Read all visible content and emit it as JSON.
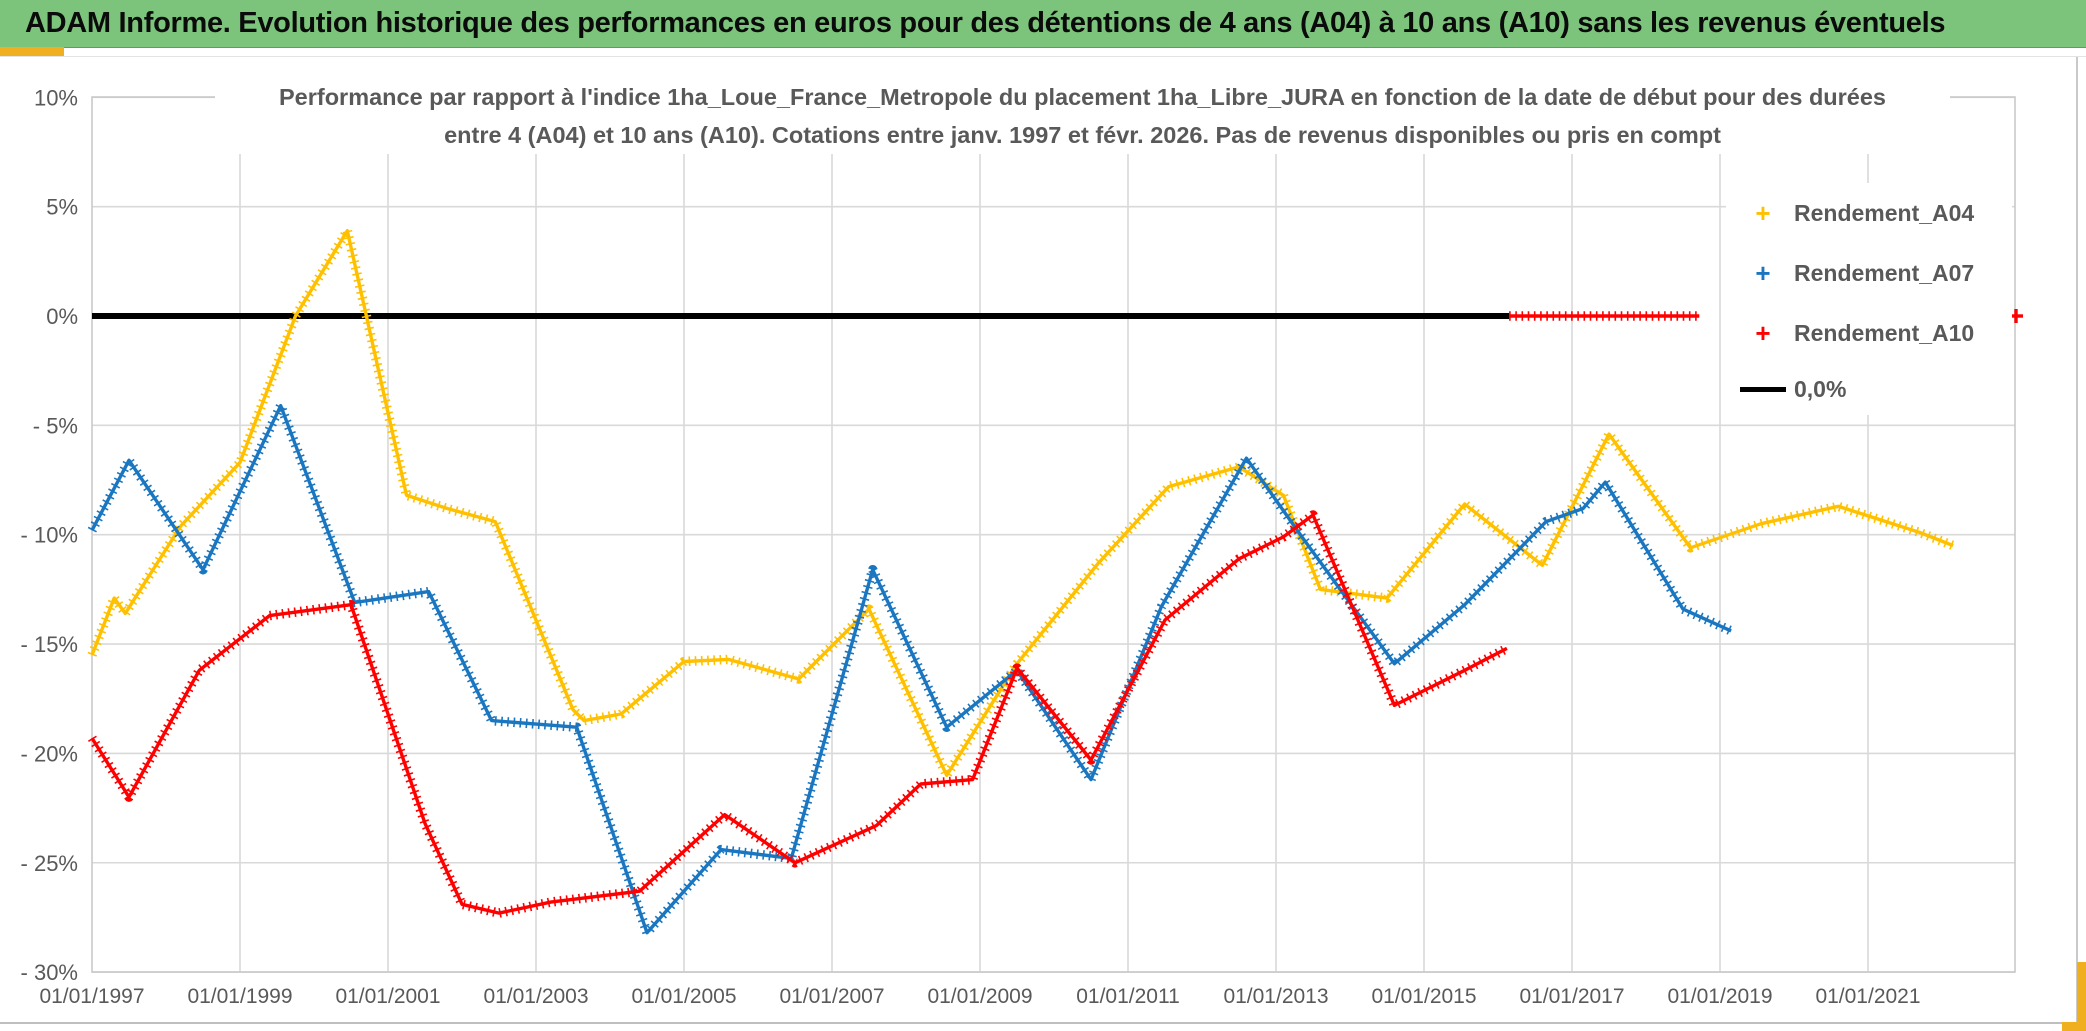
{
  "header": {
    "title": "ADAM Informe. Evolution historique des performances en euros pour des détentions de 4 ans (A04) à 10 ans (A10) sans les revenus éventuels"
  },
  "chart": {
    "title_line1": "Performance par rapport à l'indice 1ha_Loue_France_Metropole  du placement 1ha_Libre_JURA en fonction de la date de début pour des durées",
    "title_line2": "entre 4 (A04) et 10 ans (A10). Cotations entre janv. 1997 et févr. 2026. Pas de revenus disponibles ou pris en compt"
  },
  "legend": [
    {
      "label": "Rendement_A04",
      "marker": "plus",
      "color": "#FFC000"
    },
    {
      "label": "Rendement_A07",
      "marker": "plus",
      "color": "#1B76C0"
    },
    {
      "label": "Rendement_A10",
      "marker": "plus",
      "color": "#FE0000"
    },
    {
      "label": "0,0%",
      "marker": "line",
      "color": "#000000"
    }
  ],
  "colors": {
    "header_green": "#7cc47c",
    "gold_accent": "#efaf1f",
    "grid": "#D9D9D9",
    "axis_text": "#595959",
    "series_a04": "#FFC000",
    "series_a07": "#1B76C0",
    "series_a10": "#FE0000",
    "zero_line": "#000000"
  },
  "chart_data": {
    "type": "line",
    "x_unit": "decimal_year",
    "xlim": [
      1997.0,
      2023.0
    ],
    "ylim": [
      -30,
      10
    ],
    "grid": true,
    "legend_position": "right-inside",
    "y_tick_labels": [
      "10%",
      "5%",
      "0%",
      "- 5%",
      "- 10%",
      "- 15%",
      "- 20%",
      "- 25%",
      "- 30%"
    ],
    "y_tick_values": [
      10,
      5,
      0,
      -5,
      -10,
      -15,
      -20,
      -25,
      -30
    ],
    "x_tick_labels": [
      "01/01/1997",
      "01/01/1999",
      "01/01/2001",
      "01/01/2003",
      "01/01/2005",
      "01/01/2007",
      "01/01/2009",
      "01/01/2011",
      "01/01/2013",
      "01/01/2015",
      "01/01/2017",
      "01/01/2019",
      "01/01/2021"
    ],
    "x_tick_values": [
      1997,
      1999,
      2001,
      2003,
      2005,
      2007,
      2009,
      2011,
      2013,
      2015,
      2017,
      2019,
      2021
    ],
    "gridline_years": [
      1999,
      2001,
      2003,
      2005,
      2007,
      2009,
      2011,
      2013,
      2015,
      2017,
      2019,
      2021
    ],
    "series": [
      {
        "name": "Rendement_A04",
        "color": "#FFC000",
        "texture": "plus",
        "points": [
          [
            1997.0,
            -15.5
          ],
          [
            1997.3,
            -12.9
          ],
          [
            1997.45,
            -13.6
          ],
          [
            1998.2,
            -9.6
          ],
          [
            1999.0,
            -6.7
          ],
          [
            1999.75,
            0.0
          ],
          [
            2000.45,
            3.9
          ],
          [
            2001.25,
            -8.2
          ],
          [
            2001.8,
            -8.8
          ],
          [
            2002.45,
            -9.4
          ],
          [
            2003.5,
            -18.0
          ],
          [
            2003.65,
            -18.5
          ],
          [
            2004.15,
            -18.2
          ],
          [
            2005.0,
            -15.8
          ],
          [
            2005.6,
            -15.7
          ],
          [
            2006.55,
            -16.6
          ],
          [
            2007.5,
            -13.4
          ],
          [
            2008.55,
            -21.0
          ],
          [
            2009.5,
            -15.9
          ],
          [
            2010.6,
            -11.3
          ],
          [
            2011.55,
            -7.8
          ],
          [
            2012.5,
            -6.9
          ],
          [
            2013.1,
            -8.2
          ],
          [
            2013.6,
            -12.5
          ],
          [
            2014.5,
            -12.9
          ],
          [
            2015.55,
            -8.6
          ],
          [
            2016.6,
            -11.4
          ],
          [
            2017.5,
            -5.4
          ],
          [
            2018.6,
            -10.6
          ],
          [
            2019.55,
            -9.5
          ],
          [
            2020.6,
            -8.7
          ],
          [
            2021.7,
            -9.9
          ],
          [
            2022.15,
            -10.5
          ]
        ]
      },
      {
        "name": "Rendement_A07",
        "color": "#1B76C0",
        "texture": "plus",
        "points": [
          [
            1997.0,
            -9.8
          ],
          [
            1997.5,
            -6.6
          ],
          [
            1998.5,
            -11.6
          ],
          [
            1999.55,
            -4.1
          ],
          [
            2000.55,
            -13.1
          ],
          [
            2001.55,
            -12.6
          ],
          [
            2002.4,
            -18.5
          ],
          [
            2003.55,
            -18.8
          ],
          [
            2004.5,
            -28.2
          ],
          [
            2005.5,
            -24.4
          ],
          [
            2006.45,
            -24.8
          ],
          [
            2007.55,
            -11.6
          ],
          [
            2008.55,
            -18.8
          ],
          [
            2009.5,
            -16.2
          ],
          [
            2010.5,
            -21.2
          ],
          [
            2011.45,
            -13.3
          ],
          [
            2012.6,
            -6.5
          ],
          [
            2013.35,
            -10.1
          ],
          [
            2014.6,
            -15.9
          ],
          [
            2015.55,
            -13.2
          ],
          [
            2016.65,
            -9.4
          ],
          [
            2017.15,
            -8.8
          ],
          [
            2017.45,
            -7.6
          ],
          [
            2018.5,
            -13.4
          ],
          [
            2019.15,
            -14.4
          ]
        ]
      },
      {
        "name": "Rendement_A10",
        "color": "#FE0000",
        "texture": "plus",
        "points": [
          [
            1997.0,
            -19.3
          ],
          [
            1997.5,
            -22.0
          ],
          [
            1998.45,
            -16.2
          ],
          [
            1999.4,
            -13.7
          ],
          [
            2000.5,
            -13.2
          ],
          [
            2001.5,
            -23.2
          ],
          [
            2002.0,
            -26.9
          ],
          [
            2002.5,
            -27.3
          ],
          [
            2003.2,
            -26.8
          ],
          [
            2004.4,
            -26.3
          ],
          [
            2005.55,
            -22.8
          ],
          [
            2006.5,
            -25.0
          ],
          [
            2007.6,
            -23.3
          ],
          [
            2008.2,
            -21.4
          ],
          [
            2008.9,
            -21.2
          ],
          [
            2009.5,
            -16.1
          ],
          [
            2010.5,
            -20.3
          ],
          [
            2011.5,
            -13.9
          ],
          [
            2012.5,
            -11.1
          ],
          [
            2013.1,
            -10.1
          ],
          [
            2013.5,
            -9.1
          ],
          [
            2014.6,
            -17.8
          ],
          [
            2015.55,
            -16.2
          ],
          [
            2016.12,
            -15.2
          ]
        ]
      },
      {
        "name": "Rendement_A10_zero_segment",
        "color": "#FE0000",
        "texture": "plus",
        "points": [
          [
            2016.15,
            0.0
          ],
          [
            2018.72,
            0.0
          ]
        ]
      },
      {
        "name": "0,0%",
        "color": "#000000",
        "texture": "solid",
        "points": [
          [
            1997.0,
            0.0
          ],
          [
            2016.15,
            0.0
          ]
        ]
      }
    ],
    "outlier_points": [
      {
        "series": "Rendement_A10",
        "x": 2023.0,
        "y": 0.0,
        "color": "#FE0000"
      }
    ]
  }
}
